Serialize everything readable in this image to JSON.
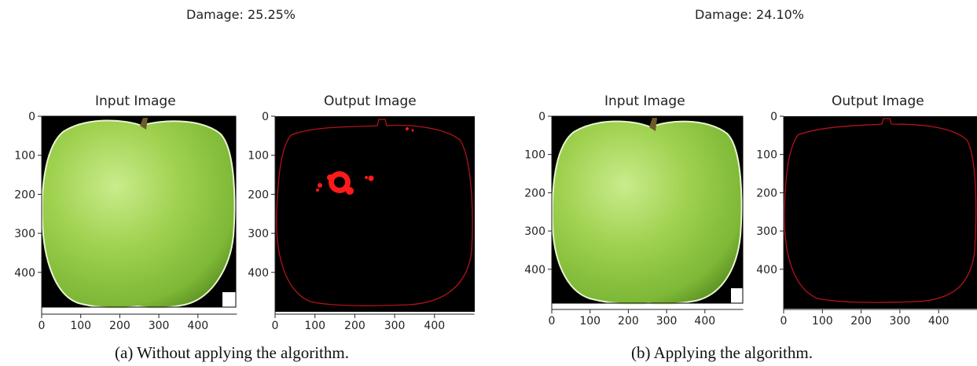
{
  "panels": [
    {
      "damage": "Damage: 25.25%",
      "caption": "(a) Without applying the algorithm.",
      "input_title": "Input Image",
      "output_title": "Output Image",
      "x_ticks": [
        "0",
        "100",
        "200",
        "300",
        "400"
      ],
      "y_ticks": [
        "0",
        "100",
        "200",
        "300",
        "400"
      ]
    },
    {
      "damage": "Damage: 24.10%",
      "caption": "(b) Applying the algorithm.",
      "input_title": "Input Image",
      "output_title": "Output Image",
      "x_ticks": [
        "0",
        "100",
        "200",
        "300",
        "400"
      ],
      "y_ticks": [
        "0",
        "100",
        "200",
        "300",
        "400"
      ]
    }
  ],
  "colors": {
    "apple_light": "#b9e27a",
    "apple_mid": "#8cc63f",
    "apple_dark": "#5f9424",
    "outline_red": "#b0141a",
    "spot_red": "#ff1a1a"
  }
}
